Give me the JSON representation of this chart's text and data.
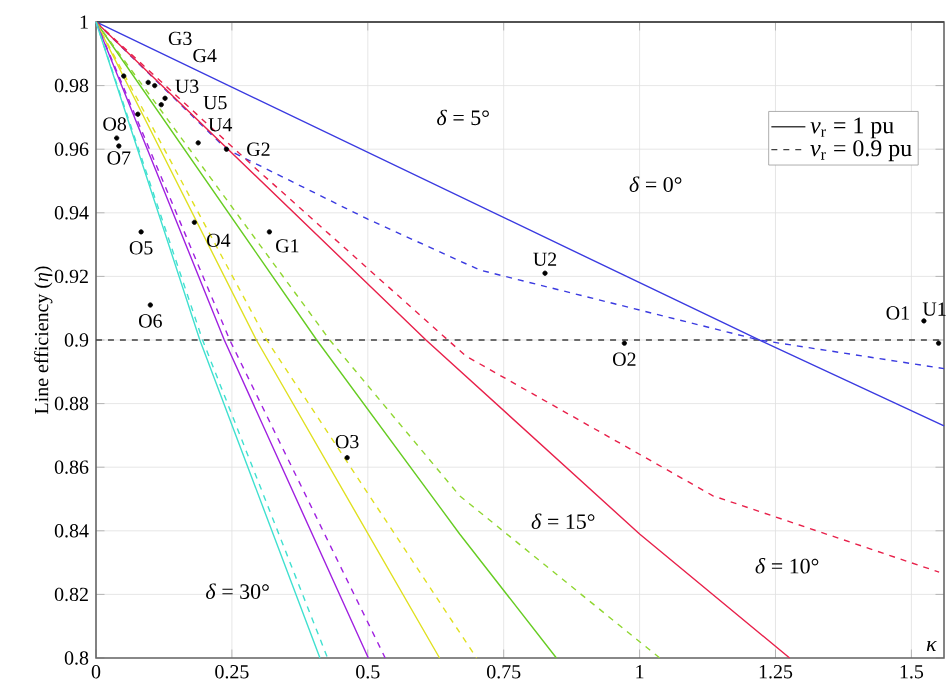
{
  "chart_data": {
    "type": "line",
    "xlabel": "κ",
    "ylabel": "Line efficiency (*η*)",
    "xlim": [
      0,
      1.56
    ],
    "ylim": [
      0.8,
      1
    ],
    "xticks": [
      0,
      0.25,
      0.5,
      0.75,
      1,
      1.25,
      1.5
    ],
    "yticks": [
      0.8,
      0.82,
      0.84,
      0.86,
      0.88,
      0.9,
      0.92,
      0.94,
      0.96,
      0.98,
      1
    ],
    "grid": true,
    "legend": "top right",
    "marker": "none",
    "series": [
      {
        "name": "*v*$_{r}$ = 1 pu",
        "color": "#404040",
        "line_style": "solid",
        "x": [
          0,
          1.56
        ],
        "values": [
          1,
          1
        ]
      },
      {
        "name": "*v*$_{r}$ = 0.9 pu",
        "color": "#404040",
        "line_style": "dashed",
        "x": [
          0,
          1.56
        ],
        "values": [
          0.9,
          0.9
        ]
      },
      {
        "color": "#3a3ae0",
        "line_style": "solid",
        "x": [
          0,
          1.22,
          1.56
        ],
        "values": [
          1,
          0.9,
          0.873
        ]
      },
      {
        "color": "#3a3ae0",
        "line_style": "dashed",
        "x": [
          0,
          0.24,
          0.5,
          0.706,
          1.22,
          1.56
        ],
        "values": [
          1,
          0.96,
          0.938,
          0.922,
          0.9,
          0.891
        ]
      },
      {
        "color": "#e8204a",
        "line_style": "solid",
        "x": [
          0,
          0.607,
          1,
          1.276
        ],
        "values": [
          1,
          0.9,
          0.839,
          0.8
        ]
      },
      {
        "color": "#e8204a",
        "line_style": "dashed",
        "x": [
          0,
          0.3,
          0.68,
          1.135,
          1.551
        ],
        "values": [
          1,
          0.953,
          0.895,
          0.851,
          0.827
        ]
      },
      {
        "color": "#66cc22",
        "line_style": "solid",
        "x": [
          0,
          0.406,
          0.669,
          0.847
        ],
        "values": [
          1,
          0.9,
          0.839,
          0.8
        ]
      },
      {
        "color": "#8fd630",
        "line_style": "dashed",
        "x": [
          0,
          0.43,
          0.669,
          1.037
        ],
        "values": [
          1,
          0.9,
          0.851,
          0.8
        ]
      },
      {
        "color": "#e0e020",
        "line_style": "solid",
        "x": [
          0,
          0.295,
          0.632
        ],
        "values": [
          1,
          0.9,
          0.8
        ]
      },
      {
        "color": "#e0e020",
        "line_style": "dashed",
        "x": [
          0,
          0.314,
          0.7
        ],
        "values": [
          1,
          0.9,
          0.8
        ]
      },
      {
        "color": "#a020e0",
        "line_style": "solid",
        "x": [
          0,
          0.236,
          0.501
        ],
        "values": [
          1,
          0.9,
          0.8
        ]
      },
      {
        "color": "#a020e0",
        "line_style": "dashed",
        "x": [
          0,
          0.246,
          0.532
        ],
        "values": [
          1,
          0.9,
          0.8
        ]
      },
      {
        "color": "#40e0d0",
        "line_style": "solid",
        "x": [
          0,
          0.191,
          0.412
        ],
        "values": [
          1,
          0.9,
          0.8
        ]
      },
      {
        "color": "#40e0d0",
        "line_style": "dashed",
        "x": [
          0,
          0.196,
          0.426
        ],
        "values": [
          1,
          0.9,
          0.8
        ]
      },
      {
        "type": "scatter",
        "color": "#000000",
        "x": [
          1.523,
          1.55,
          0.972,
          0.462,
          0.181,
          0.083,
          0.1,
          0.042,
          0.038,
          0.826,
          0.127,
          0.188,
          0.12,
          0.319,
          0.24,
          0.096,
          0.108,
          0.051,
          0.077
        ],
        "values": [
          0.906,
          0.899,
          0.899,
          0.863,
          0.937,
          0.934,
          0.911,
          0.961,
          0.9635,
          0.921,
          0.976,
          0.962,
          0.974,
          0.934,
          0.96,
          0.981,
          0.98,
          0.983,
          0.971
        ]
      }
    ],
    "annotations": [
      "*δ* = 5°",
      "*δ* = 0°",
      "*δ* = 10°",
      "*δ* = 15°",
      "*δ* = 30°",
      {
        "text": "O1",
        "x": 1.523,
        "y": 0.906
      },
      {
        "text": "U1",
        "x": 1.55,
        "y": 0.899
      },
      {
        "text": "O2",
        "x": 0.972,
        "y": 0.899
      },
      {
        "text": "O3",
        "x": 0.462,
        "y": 0.863
      },
      {
        "text": "O4",
        "x": 0.181,
        "y": 0.937
      },
      {
        "text": "O5",
        "x": 0.083,
        "y": 0.934
      },
      {
        "text": "O6",
        "x": 0.1,
        "y": 0.911
      },
      {
        "text": "O7",
        "x": 0.042,
        "y": 0.961
      },
      {
        "text": "O8",
        "x": 0.038,
        "y": 0.9635
      },
      {
        "text": "U2",
        "x": 0.826,
        "y": 0.921
      },
      {
        "text": "U3",
        "x": 0.127,
        "y": 0.976
      },
      {
        "text": "U4",
        "x": 0.188,
        "y": 0.962
      },
      {
        "text": "U5",
        "x": 0.12,
        "y": 0.974
      },
      {
        "text": "G1",
        "x": 0.319,
        "y": 0.934
      },
      {
        "text": "G2",
        "x": 0.24,
        "y": 0.96
      },
      {
        "text": "G3",
        "x": 0.096,
        "y": 0.981
      },
      {
        "text": "G4",
        "x": 0.108,
        "y": 0.98
      }
    ]
  }
}
